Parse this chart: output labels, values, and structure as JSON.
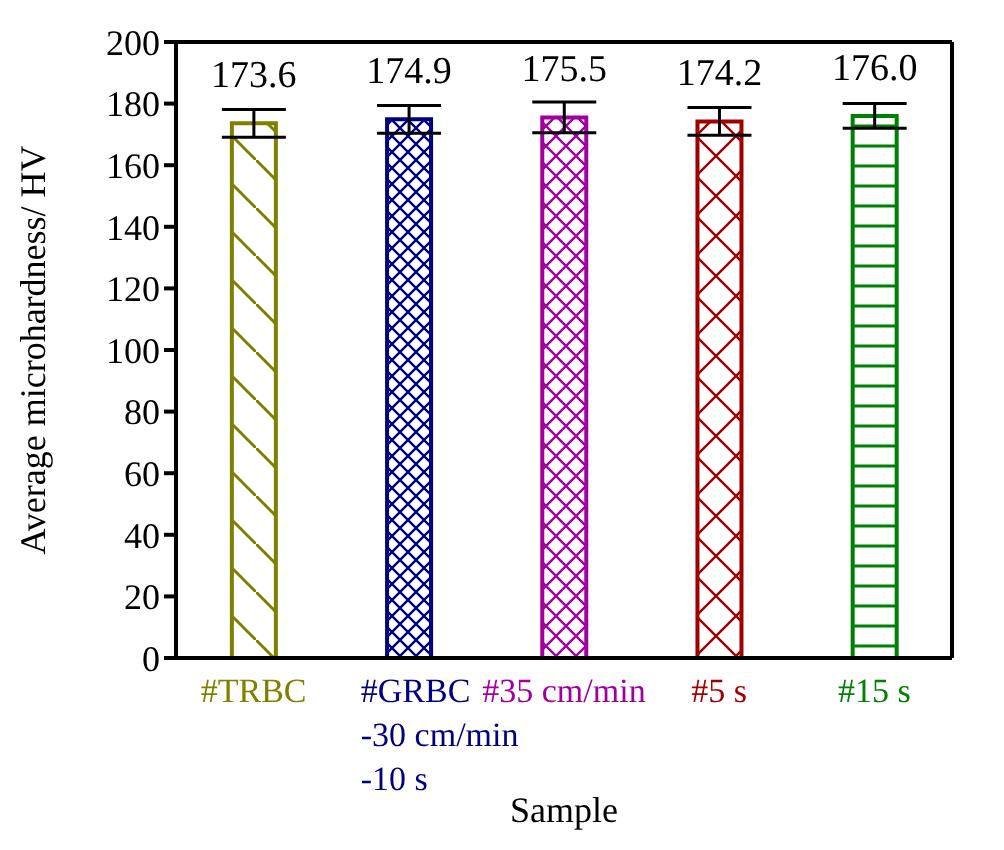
{
  "chart_data": {
    "type": "bar",
    "xlabel": "Sample",
    "ylabel": "Average microhardness/ HV",
    "categories": [
      "#TRBC",
      "#GRBC\n-30 cm/min\n-10 s",
      "#35 cm/min",
      "#5 s",
      "#15 s"
    ],
    "values": [
      173.6,
      174.9,
      175.5,
      174.2,
      176.0
    ],
    "value_labels": [
      "173.6",
      "174.9",
      "175.5",
      "174.2",
      "176.0"
    ],
    "errors": [
      4.5,
      4.5,
      5,
      4.5,
      4
    ],
    "colors": [
      "#808000",
      "#000080",
      "#a000a0",
      "#a00000",
      "#008000"
    ],
    "ylim": [
      0,
      200
    ],
    "yticks": [
      0,
      20,
      40,
      60,
      80,
      100,
      120,
      140,
      160,
      180,
      200
    ],
    "grid": false
  }
}
